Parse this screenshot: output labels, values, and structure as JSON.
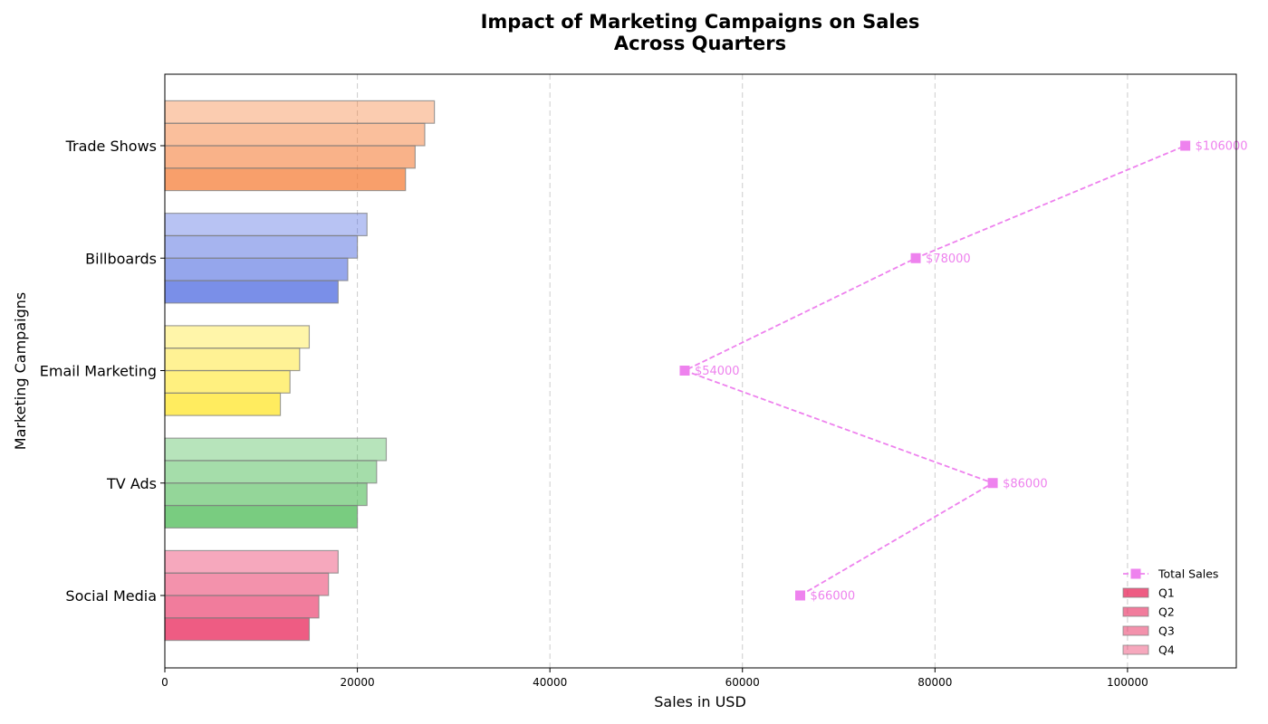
{
  "chart_data": {
    "type": "bar",
    "orientation": "horizontal",
    "title": "Impact of Marketing Campaigns on Sales\nAcross Quarters",
    "xlabel": "Sales in USD",
    "ylabel": "Marketing Campaigns",
    "xlim": [
      0,
      111300
    ],
    "xticks": [
      0,
      20000,
      40000,
      60000,
      80000,
      100000
    ],
    "grid": "x, dashed",
    "legend_position": "lower right",
    "categories": [
      "Social Media",
      "TV Ads",
      "Email Marketing",
      "Billboards",
      "Trade Shows"
    ],
    "series": [
      {
        "name": "Q1",
        "values": [
          15000,
          20000,
          12000,
          18000,
          25000
        ]
      },
      {
        "name": "Q2",
        "values": [
          16000,
          21000,
          13000,
          19000,
          26000
        ]
      },
      {
        "name": "Q3",
        "values": [
          17000,
          22000,
          14000,
          20000,
          27000
        ]
      },
      {
        "name": "Q4",
        "values": [
          18000,
          23000,
          15000,
          21000,
          28000
        ]
      }
    ],
    "category_colors": [
      "#e8255a",
      "#4cbb55",
      "#ffe629",
      "#4e6ae0",
      "#f57f3a"
    ],
    "quarter_opacity": [
      0.75,
      0.6,
      0.5,
      0.4
    ],
    "line_series": {
      "name": "Total Sales",
      "values": [
        66000,
        86000,
        54000,
        78000,
        106000
      ],
      "labels": [
        "$66000",
        "$86000",
        "$54000",
        "$78000",
        "$106000"
      ],
      "color": "#ee82ee",
      "style": "dashed",
      "marker": "square"
    },
    "legend_entries": [
      "Total Sales",
      "Q1",
      "Q2",
      "Q3",
      "Q4"
    ]
  }
}
